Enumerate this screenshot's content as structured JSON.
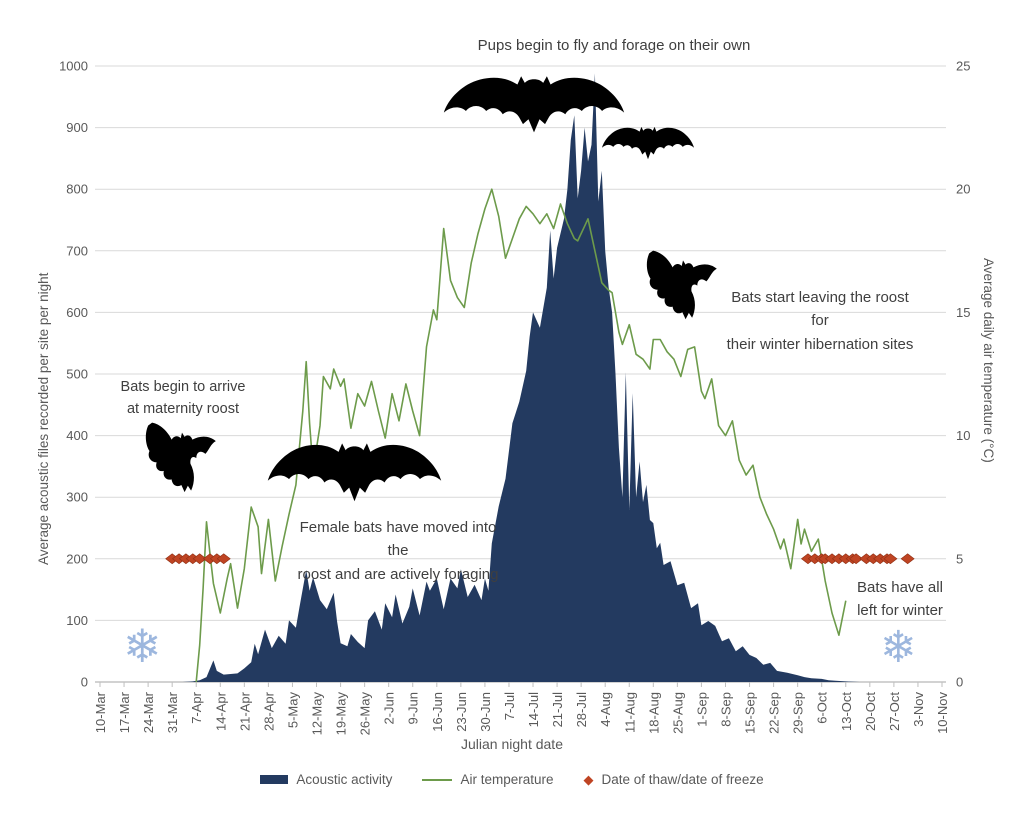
{
  "annotations": {
    "pups": "Pups begin to fly and forage on their own",
    "arrive": "Bats begin to arrive\nat maternity roost",
    "female": "Female bats have moved into the\nroost and are actively foraging",
    "leaving": "Bats start leaving the roost for\ntheir winter hibernation sites",
    "left_winter": "Bats have all\nleft for winter"
  },
  "icons": {
    "snowflake": "❄",
    "legend_diamond": "◆"
  },
  "colors": {
    "acoustic_fill": "#233a60",
    "temperature_line": "#6d9b4b",
    "diamond_fill": "#bf4423",
    "diamond_stroke": "#8f3014",
    "gridline": "#d9d9d9",
    "axis_line": "#a6a6a6",
    "tick_text": "#595959",
    "snowflake": "#9db7de"
  },
  "chart_data": {
    "type": "combo",
    "x_title": "Julian night date",
    "x_tick_labels": [
      "10-Mar",
      "17-Mar",
      "24-Mar",
      "31-Mar",
      "7-Apr",
      "14-Apr",
      "21-Apr",
      "28-Apr",
      "5-May",
      "12-May",
      "19-May",
      "26-May",
      "2-Jun",
      "9-Jun",
      "16-Jun",
      "23-Jun",
      "30-Jun",
      "7-Jul",
      "14-Jul",
      "21-Jul",
      "28-Jul",
      "4-Aug",
      "11-Aug",
      "18-Aug",
      "25-Aug",
      "1-Sep",
      "8-Sep",
      "15-Sep",
      "22-Sep",
      "29-Sep",
      "6-Oct",
      "13-Oct",
      "20-Oct",
      "27-Oct",
      "3-Nov",
      "10-Nov"
    ],
    "x_domain_days": [
      0,
      245
    ],
    "grid": "horizontal-only",
    "legend_position": "bottom",
    "y_left": {
      "label": "Average acoustic files recorded per site per night",
      "min": 0,
      "max": 1000,
      "ticks": [
        0,
        100,
        200,
        300,
        400,
        500,
        600,
        700,
        800,
        900,
        1000
      ]
    },
    "y_right": {
      "label": "Average daily air temperature (°C)",
      "min": 0,
      "max": 25,
      "ticks": [
        0,
        5,
        10,
        15,
        20,
        25
      ]
    },
    "series": [
      {
        "name": "Acoustic activity",
        "type": "area",
        "axis": "left",
        "color": "#233a60",
        "points": [
          [
            0,
            0
          ],
          [
            24,
            0
          ],
          [
            27,
            1
          ],
          [
            29,
            3
          ],
          [
            31,
            8
          ],
          [
            33,
            35
          ],
          [
            34,
            18
          ],
          [
            36,
            12
          ],
          [
            38,
            13
          ],
          [
            40,
            14
          ],
          [
            42,
            22
          ],
          [
            44,
            32
          ],
          [
            45,
            62
          ],
          [
            46,
            45
          ],
          [
            48,
            85
          ],
          [
            50,
            55
          ],
          [
            52,
            75
          ],
          [
            54,
            62
          ],
          [
            55,
            100
          ],
          [
            57,
            88
          ],
          [
            58,
            120
          ],
          [
            60,
            182
          ],
          [
            61,
            148
          ],
          [
            62,
            170
          ],
          [
            64,
            133
          ],
          [
            66,
            118
          ],
          [
            68,
            145
          ],
          [
            69,
            98
          ],
          [
            70,
            63
          ],
          [
            72,
            58
          ],
          [
            73,
            78
          ],
          [
            75,
            65
          ],
          [
            77,
            55
          ],
          [
            78,
            100
          ],
          [
            80,
            115
          ],
          [
            82,
            85
          ],
          [
            83,
            128
          ],
          [
            85,
            105
          ],
          [
            86,
            142
          ],
          [
            88,
            95
          ],
          [
            90,
            122
          ],
          [
            91,
            152
          ],
          [
            93,
            108
          ],
          [
            95,
            163
          ],
          [
            96,
            148
          ],
          [
            98,
            168
          ],
          [
            100,
            118
          ],
          [
            102,
            168
          ],
          [
            104,
            152
          ],
          [
            105,
            183
          ],
          [
            107,
            138
          ],
          [
            109,
            158
          ],
          [
            111,
            133
          ],
          [
            112,
            168
          ],
          [
            113,
            148
          ],
          [
            114,
            225
          ],
          [
            116,
            285
          ],
          [
            118,
            330
          ],
          [
            120,
            420
          ],
          [
            122,
            455
          ],
          [
            124,
            505
          ],
          [
            125,
            560
          ],
          [
            126,
            600
          ],
          [
            128,
            575
          ],
          [
            130,
            640
          ],
          [
            131,
            733
          ],
          [
            132,
            655
          ],
          [
            133,
            705
          ],
          [
            135,
            752
          ],
          [
            136,
            800
          ],
          [
            137,
            880
          ],
          [
            138,
            920
          ],
          [
            139,
            785
          ],
          [
            140,
            830
          ],
          [
            141,
            900
          ],
          [
            142,
            845
          ],
          [
            143,
            872
          ],
          [
            144,
            988
          ],
          [
            145,
            780
          ],
          [
            146,
            830
          ],
          [
            147,
            700
          ],
          [
            148,
            641
          ],
          [
            149,
            600
          ],
          [
            150,
            500
          ],
          [
            151,
            380
          ],
          [
            152,
            300
          ],
          [
            153,
            503
          ],
          [
            154,
            280
          ],
          [
            155,
            469
          ],
          [
            156,
            300
          ],
          [
            157,
            358
          ],
          [
            158,
            292
          ],
          [
            159,
            320
          ],
          [
            160,
            263
          ],
          [
            161,
            258
          ],
          [
            162,
            217
          ],
          [
            163,
            226
          ],
          [
            164,
            190
          ],
          [
            166,
            196
          ],
          [
            168,
            157
          ],
          [
            170,
            161
          ],
          [
            172,
            120
          ],
          [
            174,
            128
          ],
          [
            175,
            92
          ],
          [
            177,
            99
          ],
          [
            179,
            91
          ],
          [
            181,
            66
          ],
          [
            183,
            71
          ],
          [
            185,
            50
          ],
          [
            187,
            58
          ],
          [
            189,
            44
          ],
          [
            191,
            39
          ],
          [
            193,
            28
          ],
          [
            195,
            31
          ],
          [
            197,
            18
          ],
          [
            200,
            15
          ],
          [
            203,
            11
          ],
          [
            205,
            8
          ],
          [
            207,
            6
          ],
          [
            210,
            5
          ],
          [
            212,
            3
          ],
          [
            214,
            2
          ],
          [
            217,
            1
          ],
          [
            221,
            0
          ],
          [
            245,
            0
          ]
        ]
      },
      {
        "name": "Air temperature",
        "type": "line",
        "axis": "right",
        "color": "#6d9b4b",
        "points": [
          [
            28,
            0
          ],
          [
            29,
            1.5
          ],
          [
            30,
            3.8
          ],
          [
            31,
            6.5
          ],
          [
            32,
            5.2
          ],
          [
            33,
            4
          ],
          [
            35,
            2.8
          ],
          [
            37,
            4.2
          ],
          [
            38,
            4.8
          ],
          [
            40,
            3
          ],
          [
            42,
            4.6
          ],
          [
            44,
            7.1
          ],
          [
            46,
            6.3
          ],
          [
            47,
            4.4
          ],
          [
            49,
            6.6
          ],
          [
            51,
            4.1
          ],
          [
            53,
            5.5
          ],
          [
            55,
            6.8
          ],
          [
            57,
            8
          ],
          [
            59,
            11
          ],
          [
            60,
            13
          ],
          [
            61,
            10.5
          ],
          [
            62,
            8.6
          ],
          [
            64,
            10.4
          ],
          [
            65,
            12.4
          ],
          [
            67,
            11.9
          ],
          [
            68,
            12.7
          ],
          [
            70,
            12
          ],
          [
            71,
            12.3
          ],
          [
            73,
            10.3
          ],
          [
            75,
            11.7
          ],
          [
            77,
            11.2
          ],
          [
            79,
            12.2
          ],
          [
            81,
            11
          ],
          [
            83,
            9.9
          ],
          [
            85,
            11.7
          ],
          [
            87,
            10.6
          ],
          [
            89,
            12.1
          ],
          [
            91,
            11
          ],
          [
            93,
            10
          ],
          [
            95,
            13.6
          ],
          [
            97,
            15.1
          ],
          [
            98,
            14.7
          ],
          [
            100,
            18.4
          ],
          [
            102,
            16.3
          ],
          [
            104,
            15.6
          ],
          [
            106,
            15.2
          ],
          [
            108,
            17
          ],
          [
            110,
            18.2
          ],
          [
            112,
            19.2
          ],
          [
            114,
            20
          ],
          [
            116,
            18.9
          ],
          [
            118,
            17.2
          ],
          [
            120,
            18
          ],
          [
            122,
            18.8
          ],
          [
            124,
            19.3
          ],
          [
            126,
            19
          ],
          [
            128,
            18.6
          ],
          [
            130,
            19
          ],
          [
            132,
            18.4
          ],
          [
            134,
            19.4
          ],
          [
            136,
            18.6
          ],
          [
            138,
            18
          ],
          [
            139,
            17.9
          ],
          [
            141,
            18.5
          ],
          [
            142,
            18.8
          ],
          [
            144,
            17.5
          ],
          [
            146,
            16.2
          ],
          [
            148,
            15.9
          ],
          [
            149,
            15.8
          ],
          [
            151,
            14.2
          ],
          [
            152,
            13.7
          ],
          [
            154,
            14.5
          ],
          [
            156,
            13.3
          ],
          [
            158,
            13.1
          ],
          [
            160,
            12.7
          ],
          [
            161,
            13.9
          ],
          [
            163,
            13.9
          ],
          [
            165,
            13.4
          ],
          [
            167,
            13.1
          ],
          [
            169,
            12.4
          ],
          [
            171,
            13.5
          ],
          [
            173,
            13.6
          ],
          [
            175,
            11.8
          ],
          [
            176,
            11.5
          ],
          [
            178,
            12.3
          ],
          [
            180,
            10.4
          ],
          [
            182,
            10
          ],
          [
            184,
            10.6
          ],
          [
            186,
            9
          ],
          [
            188,
            8.4
          ],
          [
            190,
            8.8
          ],
          [
            192,
            7.5
          ],
          [
            194,
            6.8
          ],
          [
            196,
            6.2
          ],
          [
            198,
            5.4
          ],
          [
            199,
            5.8
          ],
          [
            201,
            4.6
          ],
          [
            203,
            6.6
          ],
          [
            204,
            5.6
          ],
          [
            205,
            6.2
          ],
          [
            207,
            5.3
          ],
          [
            209,
            5.8
          ],
          [
            211,
            4.1
          ],
          [
            213,
            2.8
          ],
          [
            215,
            1.9
          ],
          [
            217,
            3.3
          ]
        ]
      },
      {
        "name": "Date of thaw/date of freeze",
        "type": "scatter-diamond",
        "axis": "right",
        "color": "#bf4423",
        "value_c": 5,
        "thaw_days": [
          21,
          23,
          25,
          27,
          29,
          32,
          34,
          36
        ],
        "freeze_days": [
          206,
          208,
          210,
          211,
          213,
          215,
          217,
          219,
          220,
          223,
          225,
          227,
          229,
          230,
          235
        ]
      }
    ]
  }
}
